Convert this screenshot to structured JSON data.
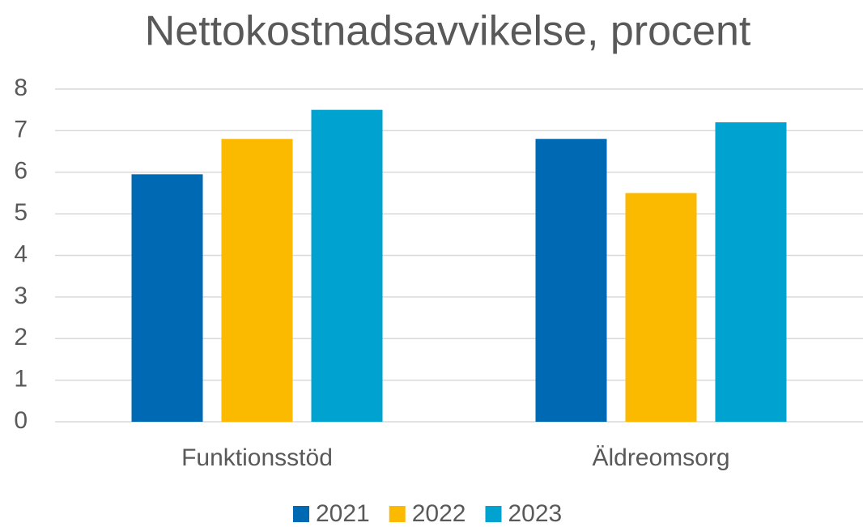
{
  "chart_data": {
    "type": "bar",
    "title": "Nettokostnadsavvikelse, procent",
    "categories": [
      "Funktionsstöd",
      "Äldreomsorg"
    ],
    "series": [
      {
        "name": "2021",
        "color": "#0069b4",
        "values": [
          5.95,
          6.8
        ]
      },
      {
        "name": "2022",
        "color": "#fbba00",
        "values": [
          6.8,
          5.5
        ]
      },
      {
        "name": "2023",
        "color": "#00a3d0",
        "values": [
          7.5,
          7.2
        ]
      }
    ],
    "ylim": [
      0,
      8
    ],
    "yticks": [
      0,
      1,
      2,
      3,
      4,
      5,
      6,
      7,
      8
    ],
    "grid": true,
    "legend": "bottom"
  }
}
